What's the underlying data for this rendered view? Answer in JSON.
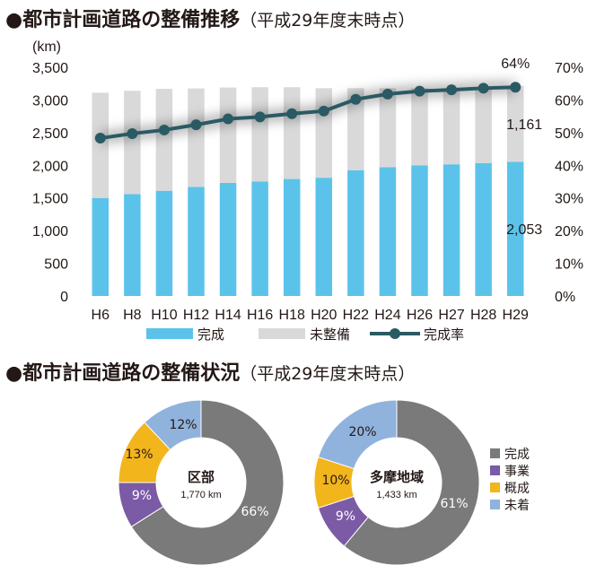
{
  "heading1": {
    "main": "●都市計画道路の整備推移",
    "sub": "（平成29年度末時点）"
  },
  "heading2": {
    "main": "●都市計画道路の整備状況",
    "sub": "（平成29年度末時点）"
  },
  "colors": {
    "complete": "#5bc3ea",
    "incomplete": "#d9d9da",
    "rate": "#2a5a63",
    "donut_complete": "#7a7a7a",
    "donut_project": "#7b5aa6",
    "donut_outline": "#f2b51c",
    "donut_unstarted": "#8fb3dc"
  },
  "chart_data": [
    {
      "type": "bar",
      "stacked": true,
      "categories": [
        "H6",
        "H8",
        "H10",
        "H12",
        "H14",
        "H16",
        "H18",
        "H20",
        "H22",
        "H24",
        "H26",
        "H27",
        "H28",
        "H29"
      ],
      "series": [
        {
          "name": "完成",
          "values": [
            1500,
            1560,
            1610,
            1670,
            1730,
            1750,
            1790,
            1810,
            1925,
            1970,
            2000,
            2015,
            2035,
            2053
          ]
        },
        {
          "name": "未整備",
          "values": [
            1610,
            1580,
            1560,
            1505,
            1460,
            1445,
            1405,
            1370,
            1255,
            1210,
            1180,
            1165,
            1160,
            1161
          ]
        },
        {
          "name": "完成率",
          "axis": "right",
          "type": "line",
          "values": [
            48.3,
            49.7,
            50.8,
            52.4,
            54.2,
            54.8,
            55.8,
            56.6,
            60.2,
            61.8,
            62.7,
            63.1,
            63.6,
            63.9
          ]
        }
      ],
      "ylabel": "(km)",
      "ylim": [
        0,
        3500
      ],
      "yticks": [
        "0",
        "500",
        "1,000",
        "1,500",
        "2,000",
        "2,500",
        "3,000",
        "3,500"
      ],
      "y2lim": [
        0,
        70
      ],
      "y2ticks": [
        "0%",
        "10%",
        "20%",
        "30%",
        "40%",
        "50%",
        "60%",
        "70%"
      ],
      "annotations": {
        "last_complete": "2,053",
        "last_incomplete": "1,161",
        "last_rate": "64%"
      },
      "legend": [
        "完成",
        "未整備",
        "完成率"
      ],
      "legend_position": "bottom",
      "grid": false
    },
    {
      "type": "pie",
      "donut": true,
      "title": "区部",
      "subtitle": "1,770 km",
      "slices": [
        {
          "name": "完成",
          "value": 66,
          "label": "66%"
        },
        {
          "name": "事業",
          "value": 9,
          "label": "9%"
        },
        {
          "name": "概成",
          "value": 13,
          "label": "13%"
        },
        {
          "name": "未着",
          "value": 12,
          "label": "12%"
        }
      ]
    },
    {
      "type": "pie",
      "donut": true,
      "title": "多摩地域",
      "subtitle": "1,433 km",
      "slices": [
        {
          "name": "完成",
          "value": 61,
          "label": "61%"
        },
        {
          "name": "事業",
          "value": 9,
          "label": "9%"
        },
        {
          "name": "概成",
          "value": 10,
          "label": "10%"
        },
        {
          "name": "未着",
          "value": 20,
          "label": "20%"
        }
      ],
      "legend": [
        "完成",
        "事業",
        "概成",
        "未着"
      ],
      "legend_position": "right"
    }
  ]
}
